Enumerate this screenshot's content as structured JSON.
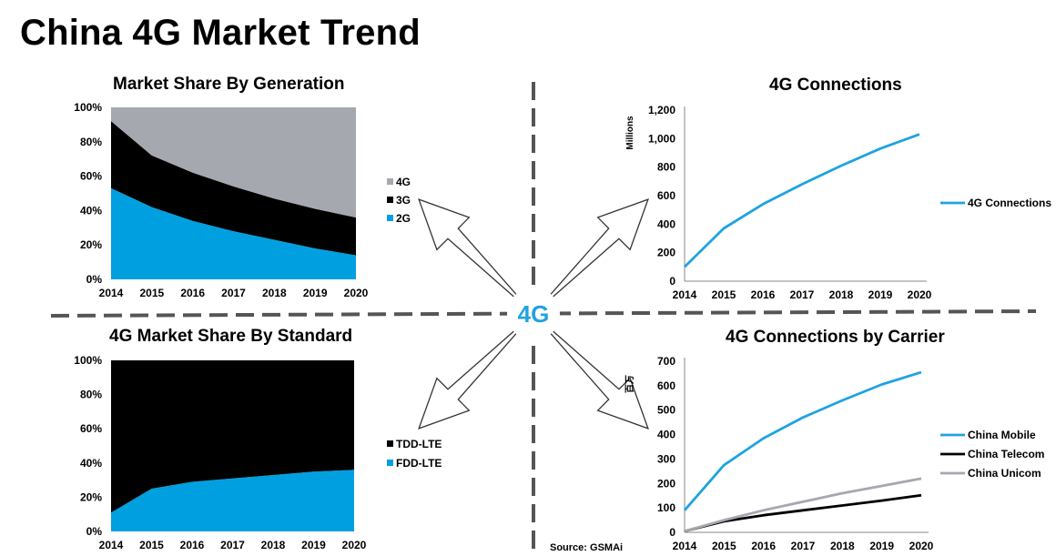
{
  "page": {
    "title": "China 4G Market Trend",
    "center_label": "4G",
    "source": "Source:  GSMAi"
  },
  "chart_data": [
    {
      "id": "market-share-generation",
      "type": "area",
      "stacked": true,
      "title": "Market Share By Generation",
      "x": [
        "2014",
        "2015",
        "2016",
        "2017",
        "2018",
        "2019",
        "2020"
      ],
      "series": [
        {
          "name": "2G",
          "values": [
            53,
            42,
            34,
            28,
            23,
            18,
            14
          ]
        },
        {
          "name": "3G",
          "values": [
            39,
            30,
            28,
            26,
            24,
            23,
            22
          ]
        },
        {
          "name": "4G",
          "values": [
            8,
            28,
            38,
            46,
            53,
            59,
            64
          ]
        }
      ],
      "legend_order": [
        "4G",
        "3G",
        "2G"
      ],
      "colors": {
        "4G": "#a6a8b0",
        "3G": "#000000",
        "2G": "#00a0e0"
      },
      "ylim": [
        0,
        100
      ],
      "yticks": [
        "0%",
        "20%",
        "40%",
        "60%",
        "80%",
        "100%"
      ],
      "legend_position": "right"
    },
    {
      "id": "market-share-standard",
      "type": "area",
      "stacked": true,
      "title": "4G Market Share By Standard",
      "x": [
        "2014",
        "2015",
        "2016",
        "2017",
        "2018",
        "2019",
        "2020"
      ],
      "series": [
        {
          "name": "FDD-LTE",
          "values": [
            11,
            25,
            29,
            31,
            33,
            35,
            36
          ]
        },
        {
          "name": "TDD-LTE",
          "values": [
            89,
            75,
            71,
            69,
            67,
            65,
            64
          ]
        }
      ],
      "legend_order": [
        "TDD-LTE",
        "FDD-LTE"
      ],
      "colors": {
        "TDD-LTE": "#000000",
        "FDD-LTE": "#00a0e0"
      },
      "ylim": [
        0,
        100
      ],
      "yticks": [
        "0%",
        "20%",
        "40%",
        "60%",
        "80%",
        "100%"
      ],
      "legend_position": "right"
    },
    {
      "id": "connections",
      "type": "line",
      "title": "4G Connections",
      "ylabel": "Millions",
      "x": [
        "2014",
        "2015",
        "2016",
        "2017",
        "2018",
        "2019",
        "2020"
      ],
      "series": [
        {
          "name": "4G Connections",
          "values": [
            100,
            370,
            540,
            680,
            810,
            930,
            1030
          ]
        }
      ],
      "colors": {
        "4G Connections": "#1fa3e0"
      },
      "ylim": [
        0,
        1200
      ],
      "yticks": [
        "0",
        "200",
        "400",
        "600",
        "800",
        "1,000",
        "1,200"
      ],
      "legend_position": "right"
    },
    {
      "id": "connections-by-carrier",
      "type": "line",
      "title": "4G Connections by Carrier",
      "ylabel": "百万",
      "x": [
        "2014",
        "2015",
        "2016",
        "2017",
        "2018",
        "2019",
        "2020"
      ],
      "series": [
        {
          "name": "China Mobile",
          "values": [
            90,
            275,
            385,
            470,
            540,
            605,
            655
          ]
        },
        {
          "name": "China Telecom",
          "values": [
            5,
            45,
            70,
            90,
            110,
            130,
            152
          ]
        },
        {
          "name": "China Unicom",
          "values": [
            5,
            50,
            90,
            125,
            160,
            190,
            220
          ]
        }
      ],
      "colors": {
        "China Mobile": "#1fa3e0",
        "China Telecom": "#000000",
        "China Unicom": "#a6a8b0"
      },
      "ylim": [
        0,
        700
      ],
      "yticks": [
        "0",
        "100",
        "200",
        "300",
        "400",
        "500",
        "600",
        "700"
      ],
      "legend_position": "right"
    }
  ]
}
